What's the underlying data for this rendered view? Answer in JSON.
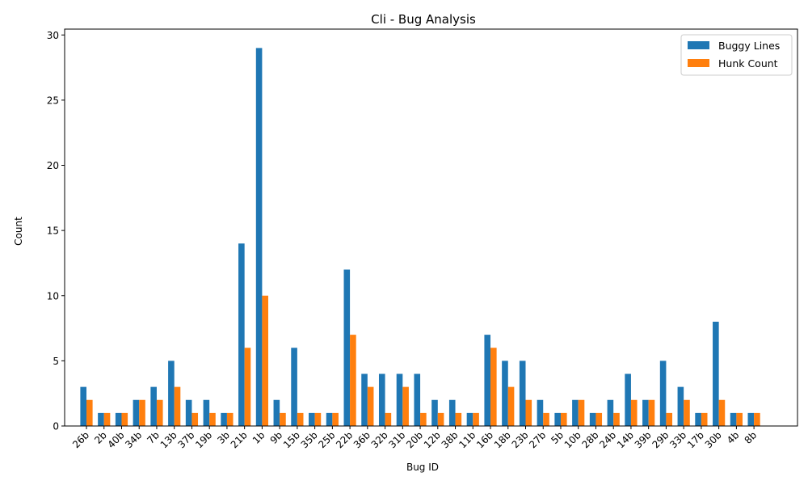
{
  "chart_data": {
    "type": "bar",
    "title": "Cli - Bug Analysis",
    "xlabel": "Bug ID",
    "ylabel": "Count",
    "ylim": [
      0,
      30.45
    ],
    "yticks": [
      0,
      5,
      10,
      15,
      20,
      25,
      30
    ],
    "grid": false,
    "legend_position": "top-right",
    "categories": [
      "26b",
      "2b",
      "40b",
      "34b",
      "7b",
      "13b",
      "37b",
      "19b",
      "3b",
      "21b",
      "1b",
      "9b",
      "15b",
      "35b",
      "25b",
      "22b",
      "36b",
      "32b",
      "31b",
      "20b",
      "12b",
      "38b",
      "11b",
      "16b",
      "18b",
      "23b",
      "27b",
      "5b",
      "10b",
      "28b",
      "24b",
      "14b",
      "39b",
      "29b",
      "33b",
      "17b",
      "30b",
      "4b",
      "8b"
    ],
    "series": [
      {
        "name": "Buggy Lines",
        "color": "#1f77b4",
        "values": [
          3,
          1,
          1,
          2,
          3,
          5,
          2,
          2,
          1,
          14,
          29,
          2,
          6,
          1,
          1,
          12,
          4,
          4,
          4,
          4,
          2,
          2,
          1,
          7,
          5,
          5,
          2,
          1,
          2,
          1,
          2,
          4,
          2,
          5,
          3,
          1,
          8,
          1,
          1
        ]
      },
      {
        "name": "Hunk Count",
        "color": "#ff7f0e",
        "values": [
          2,
          1,
          1,
          2,
          2,
          3,
          1,
          1,
          1,
          6,
          10,
          1,
          1,
          1,
          1,
          7,
          3,
          1,
          3,
          1,
          1,
          1,
          1,
          6,
          3,
          2,
          1,
          1,
          2,
          1,
          1,
          2,
          2,
          1,
          2,
          1,
          2,
          1,
          1
        ]
      }
    ]
  }
}
